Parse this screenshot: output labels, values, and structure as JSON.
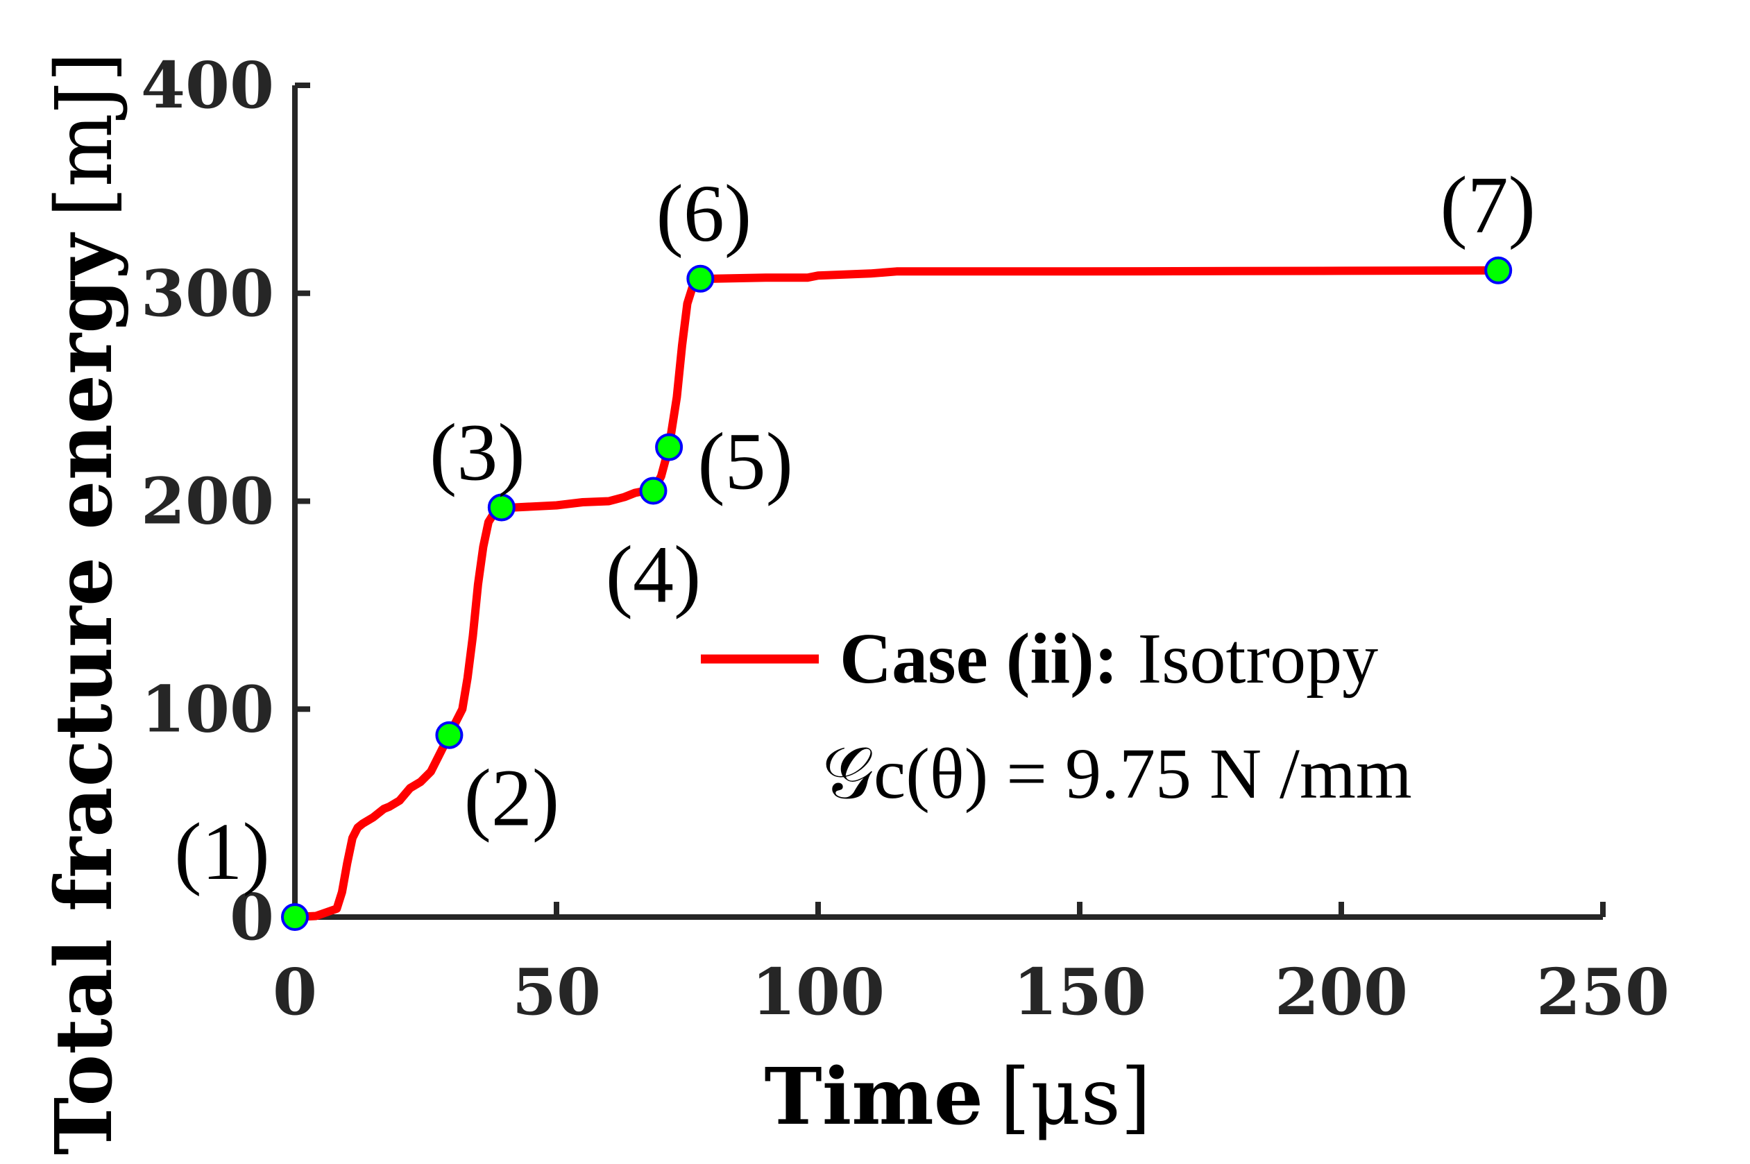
{
  "chart_data": {
    "type": "line",
    "xlabel_bold": "Time",
    "xlabel_unit": "[μs]",
    "ylabel_bold": "Total fracture energy",
    "ylabel_unit": "[mJ]",
    "xlim": [
      0,
      250
    ],
    "ylim": [
      0,
      400
    ],
    "xticks": [
      0,
      50,
      100,
      150,
      200,
      250
    ],
    "yticks": [
      0,
      100,
      200,
      300,
      400
    ],
    "xtick_labels": [
      "0",
      "50",
      "100",
      "150",
      "200",
      "250"
    ],
    "ytick_labels": [
      "0",
      "100",
      "200",
      "300",
      "400"
    ],
    "grid": false,
    "legend_position": "right",
    "series": [
      {
        "name_bold": "Case (ii):",
        "name_rest": "Isotropy",
        "name_line2": "𝒢c(θ) = 9.75 N /mm",
        "color": "#ff0000",
        "x": [
          0,
          4,
          8,
          9,
          10,
          11,
          12,
          13,
          15,
          17,
          18,
          20,
          22,
          24,
          26,
          28,
          29.5,
          31,
          32,
          33,
          34,
          35,
          36,
          37,
          38,
          39.5,
          42,
          50,
          55,
          60,
          63,
          65,
          67,
          68.5,
          70,
          71.5,
          73,
          74,
          75,
          76,
          77.5,
          80,
          90,
          98,
          100,
          110,
          115,
          150,
          200,
          230
        ],
        "y": [
          0,
          0.5,
          4,
          12,
          26,
          38,
          43,
          45,
          48,
          52,
          53,
          56,
          62,
          65,
          70,
          80,
          87.5,
          95,
          100,
          115,
          135,
          160,
          178,
          190,
          194,
          197,
          197,
          198,
          199.5,
          200,
          202,
          204,
          205,
          205,
          212,
          226,
          250,
          275,
          295,
          303,
          307,
          307,
          307.5,
          307.5,
          308.5,
          309.5,
          310.5,
          310.5,
          310.8,
          311
        ]
      }
    ],
    "markers": {
      "fill": "#00ff00",
      "edge": "#0000ff",
      "points": [
        {
          "x": 0,
          "y": 0,
          "label": "(1)"
        },
        {
          "x": 29.5,
          "y": 87.5,
          "label": "(2)"
        },
        {
          "x": 39.5,
          "y": 197,
          "label": "(3)"
        },
        {
          "x": 68.5,
          "y": 205,
          "label": "(4)"
        },
        {
          "x": 71.5,
          "y": 226,
          "label": "(5)"
        },
        {
          "x": 77.5,
          "y": 307,
          "label": "(6)"
        },
        {
          "x": 230,
          "y": 311,
          "label": "(7)"
        }
      ]
    }
  }
}
